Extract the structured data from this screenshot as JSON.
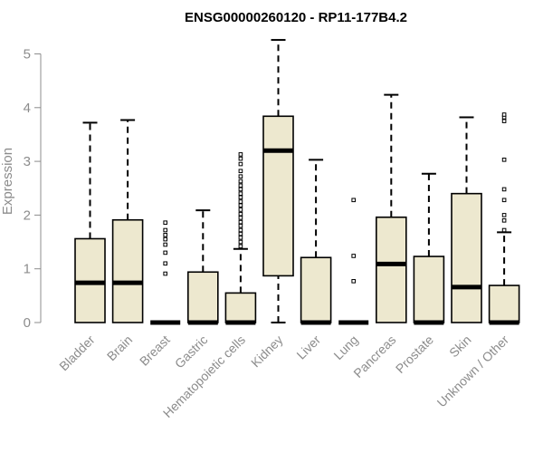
{
  "chart_data": {
    "type": "boxplot",
    "title": "ENSG00000260120 - RP11-177B4.2",
    "xlabel": "",
    "ylabel": "Expression",
    "ylim": [
      0,
      5.3
    ],
    "yticks": [
      0,
      1,
      2,
      3,
      4,
      5
    ],
    "colors": {
      "box_fill": "#ede8cf",
      "box_stroke": "#000000",
      "axis": "#8c8c8c",
      "text": "#8c8c8c"
    },
    "categories": [
      "Bladder",
      "Brain",
      "Breast",
      "Gastric",
      "Hematopoietic cells",
      "Kidney",
      "Liver",
      "Lung",
      "Pancreas",
      "Prostate",
      "Skin",
      "Unknown / Other"
    ],
    "boxes": [
      {
        "name": "Bladder",
        "min": 0,
        "q1": 0,
        "median": 0.74,
        "q3": 1.56,
        "max": 3.72,
        "outliers": []
      },
      {
        "name": "Brain",
        "min": 0,
        "q1": 0,
        "median": 0.74,
        "q3": 1.91,
        "max": 3.77,
        "outliers": []
      },
      {
        "name": "Breast",
        "min": 0,
        "q1": 0,
        "median": 0,
        "q3": 0,
        "max": 0,
        "outliers": [
          0.91,
          1.1,
          1.3,
          1.45,
          1.55,
          1.63,
          1.72,
          1.86
        ]
      },
      {
        "name": "Gastric",
        "min": 0,
        "q1": 0,
        "median": 0,
        "q3": 0.94,
        "max": 2.09,
        "outliers": []
      },
      {
        "name": "Hematopoietic cells",
        "min": 0,
        "q1": 0,
        "median": 0,
        "q3": 0.55,
        "max": 1.37,
        "outliers": [
          1.42,
          1.5,
          1.58,
          1.65,
          1.72,
          1.8,
          1.87,
          1.95,
          2.02,
          2.1,
          2.18,
          2.25,
          2.33,
          2.4,
          2.48,
          2.55,
          2.63,
          2.72,
          2.82,
          2.95,
          3.05,
          3.13
        ]
      },
      {
        "name": "Kidney",
        "min": 0,
        "q1": 0.87,
        "median": 3.2,
        "q3": 3.84,
        "max": 5.26,
        "outliers": []
      },
      {
        "name": "Liver",
        "min": 0,
        "q1": 0,
        "median": 0,
        "q3": 1.21,
        "max": 3.03,
        "outliers": []
      },
      {
        "name": "Lung",
        "min": 0,
        "q1": 0,
        "median": 0,
        "q3": 0,
        "max": 0,
        "outliers": [
          0.77,
          1.24,
          2.28
        ]
      },
      {
        "name": "Pancreas",
        "min": 0,
        "q1": 0,
        "median": 1.09,
        "q3": 1.96,
        "max": 4.24,
        "outliers": []
      },
      {
        "name": "Prostate",
        "min": 0,
        "q1": 0,
        "median": 0,
        "q3": 1.23,
        "max": 2.77,
        "outliers": []
      },
      {
        "name": "Skin",
        "min": 0,
        "q1": 0,
        "median": 0.66,
        "q3": 2.4,
        "max": 3.82,
        "outliers": []
      },
      {
        "name": "Unknown / Other",
        "min": 0,
        "q1": 0,
        "median": 0,
        "q3": 0.69,
        "max": 1.68,
        "outliers": [
          1.72,
          1.9,
          2.0,
          2.28,
          2.48,
          3.03,
          3.75,
          3.82,
          3.87
        ]
      }
    ]
  }
}
